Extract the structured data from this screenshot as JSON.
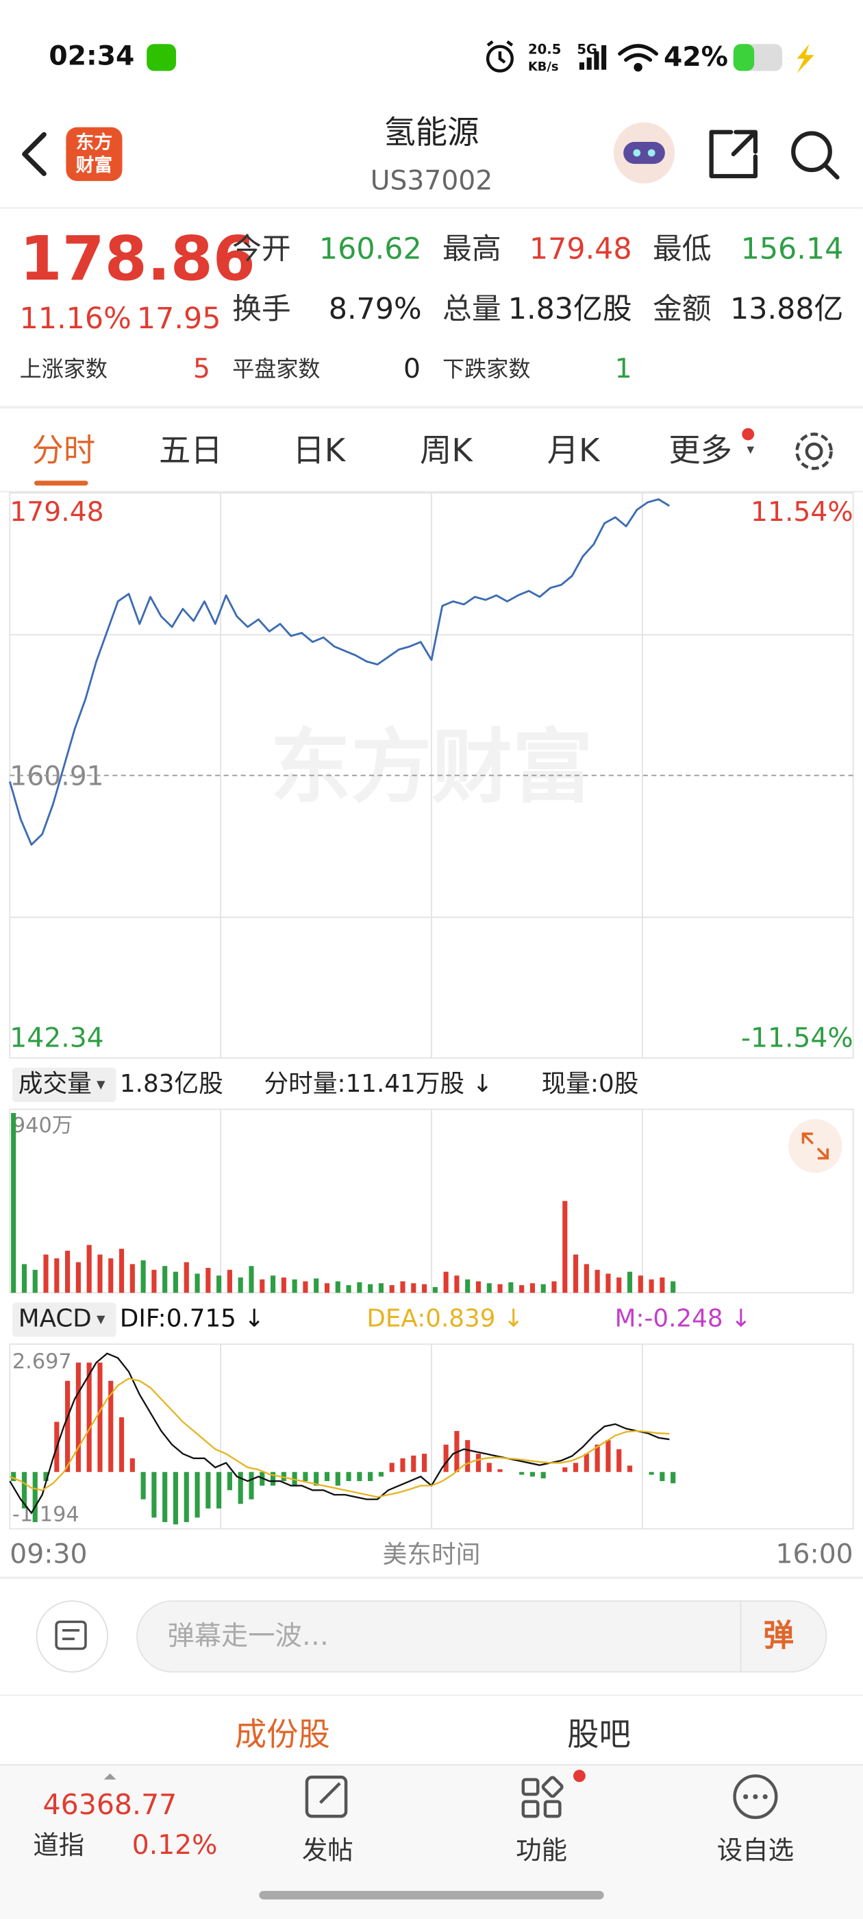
{
  "status_bar": {
    "time": "02:34",
    "net_speed": "20.5",
    "net_speed_unit": "KB/s",
    "network": "5G",
    "battery": "42%"
  },
  "header": {
    "logo": [
      "东方",
      "财富"
    ],
    "title": "氢能源",
    "code": "US37002"
  },
  "quote": {
    "price": "178.86",
    "change_pct": "11.16%",
    "change": "17.95",
    "stats": [
      {
        "label": "今开",
        "value": "160.62"
      },
      {
        "label": "最高",
        "value": "179.48"
      },
      {
        "label": "最低",
        "value": "156.14"
      },
      {
        "label": "换手",
        "value": "8.79%"
      },
      {
        "label": "总量",
        "value": "1.83亿股"
      },
      {
        "label": "金额",
        "value": "13.88亿"
      }
    ],
    "breadth": [
      {
        "label": "上涨家数",
        "value": "5"
      },
      {
        "label": "平盘家数",
        "value": "0"
      },
      {
        "label": "下跌家数",
        "value": "1"
      }
    ]
  },
  "tabs": [
    "分时",
    "五日",
    "日K",
    "周K",
    "月K",
    "更多"
  ],
  "chart_data": [
    {
      "type": "line",
      "watermark": "东方财富",
      "x": [
        0,
        5,
        10,
        15,
        20,
        25,
        30,
        35,
        40,
        45,
        50,
        55,
        60,
        65,
        70,
        75,
        80,
        85,
        90,
        95,
        100,
        105,
        110,
        115,
        120,
        125,
        130,
        135,
        140,
        145,
        150,
        155,
        160,
        165,
        170,
        175,
        180,
        185,
        190,
        195,
        200,
        205,
        210,
        215,
        220,
        225,
        230,
        235,
        240,
        245,
        250,
        255,
        260,
        265,
        270,
        275,
        280,
        285,
        290,
        295,
        300,
        305
      ],
      "series": [
        {
          "color": "#3d6cb3",
          "values": [
            160.5,
            158,
            156.3,
            157,
            159,
            161.5,
            164,
            166,
            168.5,
            170.5,
            172.5,
            173,
            171,
            172.8,
            171.5,
            170.8,
            172,
            171.2,
            172.5,
            171,
            172.9,
            171.5,
            170.8,
            171.3,
            170.5,
            171,
            170.2,
            170.4,
            169.8,
            170.1,
            169.5,
            169.2,
            168.9,
            168.5,
            168.3,
            168.8,
            169.3,
            169.5,
            169.8,
            168.6,
            172.2,
            172.5,
            172.3,
            172.8,
            172.6,
            172.9,
            172.5,
            172.9,
            173.2,
            172.8,
            173.4,
            173.6,
            174.2,
            175.5,
            176.3,
            177.7,
            178.1,
            177.5,
            178.6,
            179.1,
            179.3,
            178.86
          ]
        }
      ],
      "xlim": [
        0,
        390
      ],
      "ylim": [
        142.34,
        179.48
      ],
      "yticks": [
        142.34,
        160.91,
        179.48
      ],
      "y2lim": [
        -11.54,
        11.54
      ],
      "y2ticks": [
        {
          "value": -11.54,
          "label": "-11.54%"
        },
        {
          "value": 11.54,
          "label": "11.54%"
        }
      ]
    },
    {
      "type": "bar",
      "label": "成交量",
      "total": "1.83亿股",
      "minute_volume": "分时量:11.41万股 ↓",
      "current_volume": "现量:0股",
      "x": [
        0,
        5,
        10,
        15,
        20,
        25,
        30,
        35,
        40,
        45,
        50,
        55,
        60,
        65,
        70,
        75,
        80,
        85,
        90,
        95,
        100,
        105,
        110,
        115,
        120,
        125,
        130,
        135,
        140,
        145,
        150,
        155,
        160,
        165,
        170,
        175,
        180,
        185,
        190,
        195,
        200,
        205,
        210,
        215,
        220,
        225,
        230,
        235,
        240,
        245,
        250,
        255,
        260,
        265,
        270,
        275,
        280,
        285,
        290,
        295,
        300,
        305
      ],
      "values": [
        940,
        150,
        120,
        200,
        180,
        220,
        160,
        250,
        200,
        180,
        230,
        150,
        170,
        120,
        140,
        110,
        160,
        100,
        130,
        90,
        120,
        80,
        140,
        70,
        90,
        80,
        70,
        60,
        75,
        50,
        60,
        40,
        55,
        45,
        50,
        40,
        60,
        50,
        45,
        30,
        110,
        90,
        70,
        60,
        50,
        45,
        55,
        40,
        50,
        45,
        60,
        480,
        200,
        150,
        120,
        100,
        80,
        110,
        90,
        70,
        80,
        60
      ],
      "up_color": "#e03c31",
      "down_color": "#2e9e44",
      "xlim": [
        0,
        390
      ],
      "ylim": [
        0,
        940
      ],
      "yticks": [
        {
          "value": 940,
          "label": "940万"
        }
      ]
    },
    {
      "type": "macd",
      "label": "MACD",
      "x": [
        0,
        5,
        10,
        15,
        20,
        25,
        30,
        35,
        40,
        45,
        50,
        55,
        60,
        65,
        70,
        75,
        80,
        85,
        90,
        95,
        100,
        105,
        110,
        115,
        120,
        125,
        130,
        135,
        140,
        145,
        150,
        155,
        160,
        165,
        170,
        175,
        180,
        185,
        190,
        195,
        200,
        205,
        210,
        215,
        220,
        225,
        230,
        235,
        240,
        245,
        250,
        255,
        260,
        265,
        270,
        275,
        280,
        285,
        290,
        295,
        300,
        305
      ],
      "series": [
        {
          "name": "DIF:0.715 ↓",
          "color": "#111111",
          "values": [
            -0.2,
            -0.6,
            -0.9,
            -0.5,
            0.3,
            1.0,
            1.6,
            2.0,
            2.4,
            2.6,
            2.5,
            2.2,
            1.7,
            1.3,
            0.9,
            0.6,
            0.4,
            0.3,
            0.3,
            0.1,
            0.2,
            -0.1,
            -0.2,
            -0.1,
            -0.2,
            -0.2,
            -0.3,
            -0.3,
            -0.4,
            -0.4,
            -0.5,
            -0.5,
            -0.55,
            -0.6,
            -0.6,
            -0.4,
            -0.3,
            -0.2,
            -0.1,
            -0.3,
            0.1,
            0.4,
            0.5,
            0.45,
            0.4,
            0.35,
            0.3,
            0.25,
            0.2,
            0.15,
            0.2,
            0.25,
            0.35,
            0.55,
            0.8,
            1.0,
            1.05,
            0.95,
            0.9,
            0.85,
            0.75,
            0.715
          ]
        },
        {
          "name": "DEA:0.839 ↓",
          "color": "#e6b422",
          "values": [
            -0.1,
            -0.2,
            -0.35,
            -0.4,
            -0.25,
            0.0,
            0.4,
            0.8,
            1.2,
            1.6,
            1.9,
            2.05,
            2.0,
            1.85,
            1.6,
            1.35,
            1.1,
            0.9,
            0.7,
            0.5,
            0.4,
            0.25,
            0.1,
            0.05,
            -0.05,
            -0.1,
            -0.15,
            -0.2,
            -0.25,
            -0.3,
            -0.35,
            -0.4,
            -0.45,
            -0.5,
            -0.55,
            -0.5,
            -0.45,
            -0.38,
            -0.3,
            -0.3,
            -0.2,
            -0.05,
            0.15,
            0.25,
            0.3,
            0.32,
            0.3,
            0.28,
            0.25,
            0.22,
            0.2,
            0.2,
            0.25,
            0.35,
            0.5,
            0.65,
            0.8,
            0.88,
            0.9,
            0.88,
            0.85,
            0.839
          ]
        },
        {
          "name": "M:-0.248 ↓",
          "color": "#c23fc7",
          "up_color": "#e03c31",
          "down_color": "#2e9e44",
          "values": [
            -0.2,
            -0.8,
            -1.1,
            -0.2,
            1.1,
            2.0,
            2.4,
            2.4,
            2.4,
            2.0,
            1.2,
            0.3,
            -0.6,
            -1.0,
            -1.1,
            -1.15,
            -1.1,
            -1.0,
            -0.8,
            -0.8,
            -0.4,
            -0.7,
            -0.6,
            -0.3,
            -0.3,
            -0.2,
            -0.3,
            -0.2,
            -0.3,
            -0.2,
            -0.3,
            -0.2,
            -0.2,
            -0.2,
            -0.1,
            0.2,
            0.3,
            0.36,
            0.4,
            0,
            0.6,
            0.9,
            0.7,
            0.4,
            0.2,
            0.06,
            0,
            -0.06,
            -0.1,
            -0.14,
            0,
            0.1,
            0.2,
            0.4,
            0.6,
            0.7,
            0.5,
            0.14,
            0,
            -0.06,
            -0.2,
            -0.248
          ]
        }
      ],
      "xlim": [
        0,
        390
      ],
      "xticks": [
        {
          "value": 0,
          "label": "09:30"
        },
        {
          "value": 390,
          "label": "16:00"
        }
      ],
      "xlabel": "美东时间",
      "ylim": [
        -1.194,
        2.697
      ],
      "yticks": [
        -1.194,
        2.697
      ]
    }
  ],
  "comment_bar": {
    "placeholder": "弹幕走一波…",
    "button": "弹"
  },
  "sub_tabs": [
    "成份股",
    "股吧"
  ],
  "bottom_nav": {
    "index_value": "46368.77",
    "index_name": "道指",
    "index_change": "0.12%",
    "items": [
      "发帖",
      "功能",
      "设自选"
    ]
  }
}
